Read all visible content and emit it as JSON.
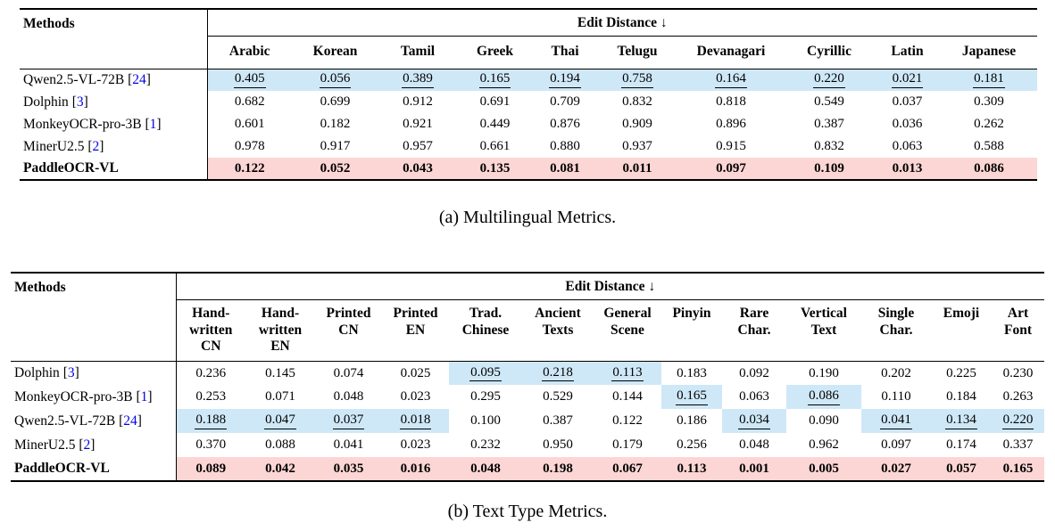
{
  "colors": {
    "highlight_blue": "#cfe8f7",
    "highlight_pink": "#fcd6d4",
    "citation_blue": "#0000ee"
  },
  "tables": [
    {
      "caption": "(a) Multilingual Metrics.",
      "methods_header": "Methods",
      "group_header": "Edit Distance ↓",
      "columns": [
        "Arabic",
        "Korean",
        "Tamil",
        "Greek",
        "Thai",
        "Telugu",
        "Devanagari",
        "Cyrillic",
        "Latin",
        "Japanese"
      ],
      "rows": [
        {
          "method": "Qwen2.5-VL-72B",
          "citation": "24",
          "style": "normal",
          "values": [
            "0.405",
            "0.056",
            "0.389",
            "0.165",
            "0.194",
            "0.758",
            "0.164",
            "0.220",
            "0.021",
            "0.181"
          ],
          "marked": [
            0,
            1,
            2,
            3,
            4,
            5,
            6,
            7,
            8,
            9
          ]
        },
        {
          "method": "Dolphin",
          "citation": "3",
          "style": "normal",
          "values": [
            "0.682",
            "0.699",
            "0.912",
            "0.691",
            "0.709",
            "0.832",
            "0.818",
            "0.549",
            "0.037",
            "0.309"
          ],
          "marked": []
        },
        {
          "method": "MonkeyOCR-pro-3B",
          "citation": "1",
          "style": "normal",
          "values": [
            "0.601",
            "0.182",
            "0.921",
            "0.449",
            "0.876",
            "0.909",
            "0.896",
            "0.387",
            "0.036",
            "0.262"
          ],
          "marked": []
        },
        {
          "method": "MinerU2.5",
          "citation": "2",
          "style": "normal",
          "values": [
            "0.978",
            "0.917",
            "0.957",
            "0.661",
            "0.880",
            "0.937",
            "0.915",
            "0.832",
            "0.063",
            "0.588"
          ],
          "marked": []
        },
        {
          "method": "PaddleOCR-VL",
          "citation": null,
          "style": "best",
          "values": [
            "0.122",
            "0.052",
            "0.043",
            "0.135",
            "0.081",
            "0.011",
            "0.097",
            "0.109",
            "0.013",
            "0.086"
          ],
          "marked": []
        }
      ]
    },
    {
      "caption": "(b) Text Type Metrics.",
      "methods_header": "Methods",
      "group_header": "Edit Distance ↓",
      "columns": [
        [
          "Hand-",
          "written",
          "CN"
        ],
        [
          "Hand-",
          "written",
          "EN"
        ],
        [
          "Printed",
          "CN"
        ],
        [
          "Printed",
          "EN"
        ],
        [
          "Trad.",
          "Chinese"
        ],
        [
          "Ancient",
          "Texts"
        ],
        [
          "General",
          "Scene"
        ],
        [
          "Pinyin"
        ],
        [
          "Rare",
          "Char."
        ],
        [
          "Vertical",
          "Text"
        ],
        [
          "Single",
          "Char."
        ],
        [
          "Emoji"
        ],
        [
          "Art",
          "Font"
        ]
      ],
      "rows": [
        {
          "method": "Dolphin",
          "citation": "3",
          "style": "normal",
          "values": [
            "0.236",
            "0.145",
            "0.074",
            "0.025",
            "0.095",
            "0.218",
            "0.113",
            "0.183",
            "0.092",
            "0.190",
            "0.202",
            "0.225",
            "0.230"
          ],
          "marked": [
            4,
            5,
            6
          ]
        },
        {
          "method": "MonkeyOCR-pro-3B",
          "citation": "1",
          "style": "normal",
          "values": [
            "0.253",
            "0.071",
            "0.048",
            "0.023",
            "0.295",
            "0.529",
            "0.144",
            "0.165",
            "0.063",
            "0.086",
            "0.110",
            "0.184",
            "0.263"
          ],
          "marked": [
            7,
            9
          ]
        },
        {
          "method": "Qwen2.5-VL-72B",
          "citation": "24",
          "style": "normal",
          "values": [
            "0.188",
            "0.047",
            "0.037",
            "0.018",
            "0.100",
            "0.387",
            "0.122",
            "0.186",
            "0.034",
            "0.090",
            "0.041",
            "0.134",
            "0.220"
          ],
          "marked": [
            0,
            1,
            2,
            3,
            8,
            10,
            11,
            12
          ]
        },
        {
          "method": "MinerU2.5",
          "citation": "2",
          "style": "normal",
          "values": [
            "0.370",
            "0.088",
            "0.041",
            "0.023",
            "0.232",
            "0.950",
            "0.179",
            "0.256",
            "0.048",
            "0.962",
            "0.097",
            "0.174",
            "0.337"
          ],
          "marked": []
        },
        {
          "method": "PaddleOCR-VL",
          "citation": null,
          "style": "best",
          "values": [
            "0.089",
            "0.042",
            "0.035",
            "0.016",
            "0.048",
            "0.198",
            "0.067",
            "0.113",
            "0.001",
            "0.005",
            "0.027",
            "0.057",
            "0.165"
          ],
          "marked": []
        }
      ]
    }
  ]
}
